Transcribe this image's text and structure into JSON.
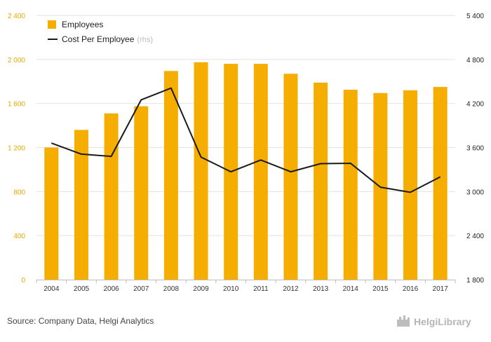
{
  "chart_data": {
    "type": "bar",
    "categories": [
      "2004",
      "2005",
      "2006",
      "2007",
      "2008",
      "2009",
      "2010",
      "2011",
      "2012",
      "2013",
      "2014",
      "2015",
      "2016",
      "2017"
    ],
    "series": [
      {
        "name": "Employees",
        "type": "bar",
        "axis": "left",
        "color": "#f5ad00",
        "values": [
          1200,
          1360,
          1510,
          1575,
          1895,
          1975,
          1960,
          1960,
          1870,
          1790,
          1725,
          1695,
          1720,
          1750
        ]
      },
      {
        "name": "Cost Per Employee",
        "name_suffix": "(rhs)",
        "type": "line",
        "axis": "right",
        "color": "#1a1a1a",
        "values": [
          3660,
          3510,
          3480,
          4250,
          4410,
          3470,
          3270,
          3430,
          3270,
          3380,
          3385,
          3060,
          2990,
          3200
        ]
      }
    ],
    "ylim_left": [
      0,
      2400
    ],
    "ylim_right": [
      1800,
      5400
    ],
    "yticks_left": [
      0,
      400,
      800,
      1200,
      1600,
      2000,
      2400
    ],
    "yticks_left_labels": [
      "0",
      "400",
      "800",
      "1 200",
      "1 600",
      "2 000",
      "2 400"
    ],
    "yticks_right": [
      1800,
      2400,
      3000,
      3600,
      4200,
      4800,
      5400
    ],
    "yticks_right_labels": [
      "1 800",
      "2 400",
      "3 000",
      "3 600",
      "4 200",
      "4 800",
      "5 400"
    ],
    "grid": true,
    "legend_position": "top-left",
    "title": "",
    "xlabel": "",
    "ylabel": ""
  },
  "footer": {
    "source": "Source: Company Data, Helgi Analytics",
    "brand": "HelgiLibrary"
  }
}
